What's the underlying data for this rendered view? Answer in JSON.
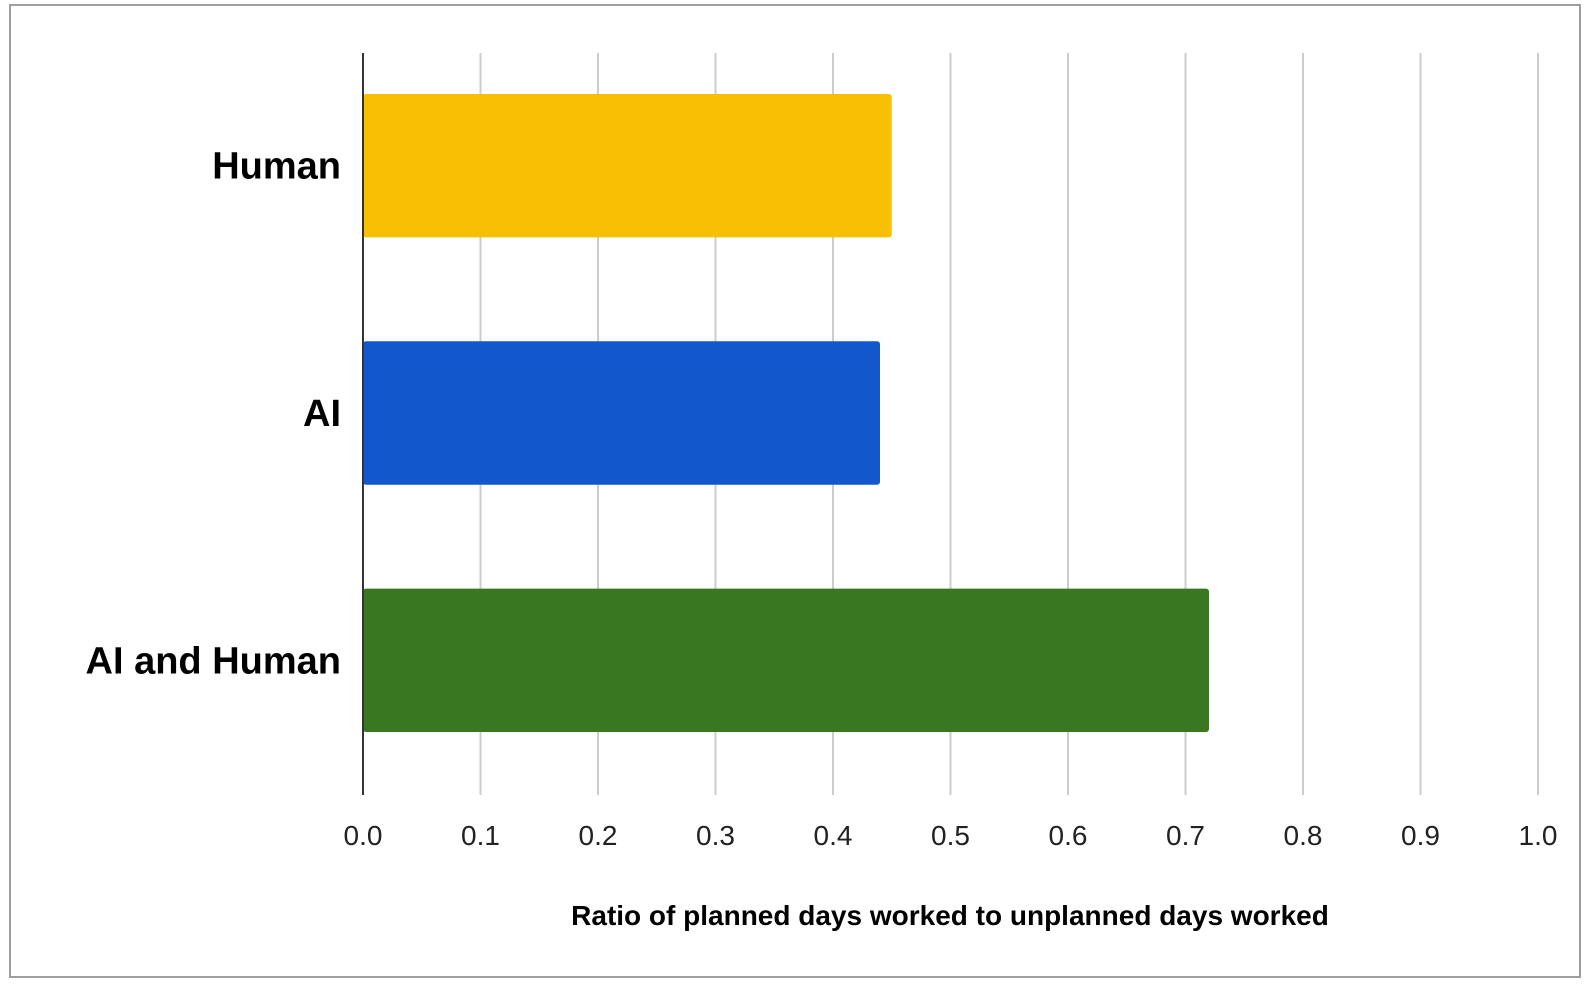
{
  "chart_data": {
    "type": "bar",
    "orientation": "horizontal",
    "categories": [
      "Human",
      "AI",
      "AI and Human"
    ],
    "values": [
      0.45,
      0.44,
      0.72
    ],
    "colors": [
      "#f9bf05",
      "#1257cc",
      "#397820"
    ],
    "title": "",
    "xlabel": "Ratio of planned days worked to unplanned days worked",
    "ylabel": "",
    "xlim": [
      0,
      1.0
    ],
    "xticks": [
      "0.0",
      "0.1",
      "0.2",
      "0.3",
      "0.4",
      "0.5",
      "0.6",
      "0.7",
      "0.8",
      "0.9",
      "1.0"
    ],
    "grid": "vertical",
    "legend": "none"
  }
}
